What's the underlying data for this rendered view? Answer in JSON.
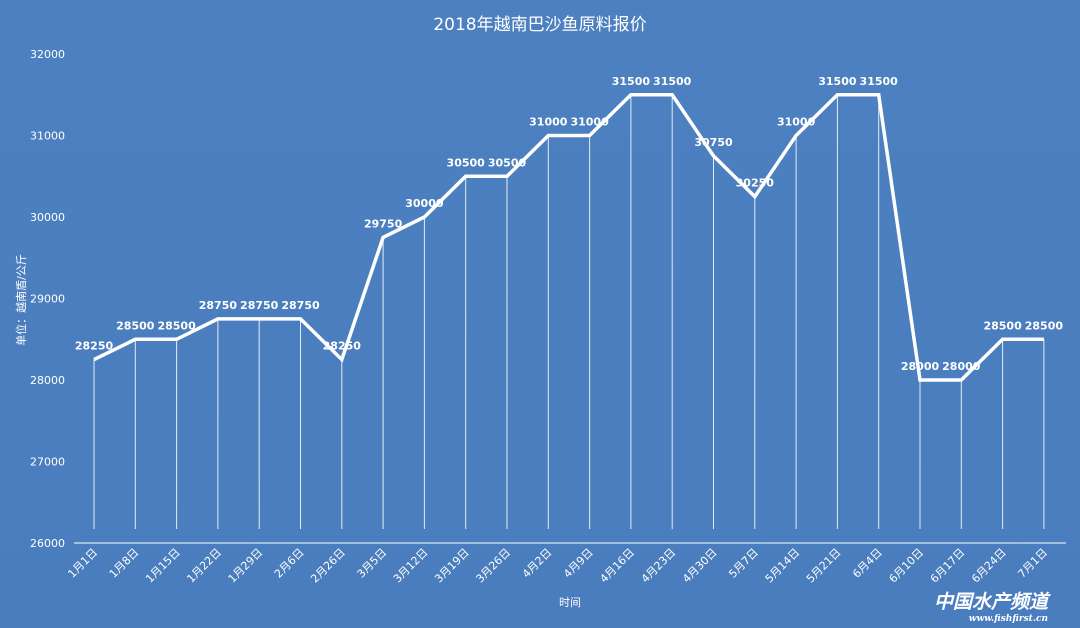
{
  "chart_data": {
    "type": "line",
    "title": "2018年越南巴沙鱼原料报价",
    "xlabel": "时间",
    "ylabel": "单位：越南盾/公斤",
    "ylim": [
      26000,
      32000
    ],
    "yticks": [
      "26000",
      "27000",
      "28000",
      "29000",
      "30000",
      "31000",
      "32000"
    ],
    "grid": false,
    "categories": [
      "1月1日",
      "1月8日",
      "1月15日",
      "1月22日",
      "1月29日",
      "2月6日",
      "2月26日",
      "3月5日",
      "3月12日",
      "3月19日",
      "3月26日",
      "4月2日",
      "4月9日",
      "4月16日",
      "4月23日",
      "4月30日",
      "5月7日",
      "5月14日",
      "5月21日",
      "6月4日",
      "6月10日",
      "6月17日",
      "6月24日",
      "7月1日"
    ],
    "series": [
      {
        "values": [
          28250,
          28500,
          28500,
          28750,
          28750,
          28750,
          28250,
          29750,
          30000,
          30500,
          30500,
          31000,
          31000,
          31500,
          31500,
          30750,
          30250,
          31000,
          31500,
          31500,
          28000,
          28000,
          28500,
          28500
        ],
        "labels": [
          "28250",
          "28500",
          "28500",
          "28750",
          "28750",
          "28750",
          "28250",
          "29750",
          "30000",
          "30500",
          "30500",
          "31000",
          "31000",
          "31500",
          "31500",
          "30750",
          "30250",
          "31000",
          "31500",
          "31500",
          "28000",
          "28000",
          "28500",
          "28500"
        ]
      }
    ],
    "colors": {
      "background": "#4a7dbd",
      "line": "#ffffff",
      "text": "#ffffff"
    }
  },
  "watermark": {
    "cn": "中国水产频道",
    "en": "www.fishfirst.cn"
  }
}
